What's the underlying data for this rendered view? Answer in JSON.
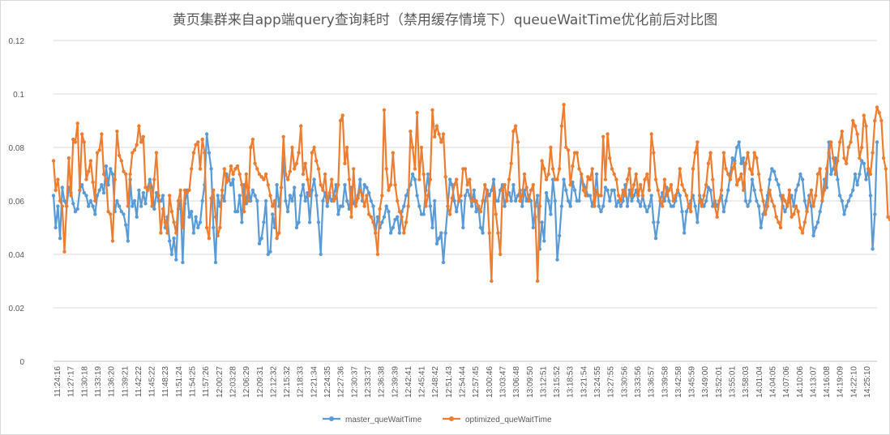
{
  "chart_data": {
    "type": "line",
    "title": "黄页集群来自app端query查询耗时（禁用缓存情境下）queueWaitTime优化前后对比图",
    "ylim": [
      0,
      0.12
    ],
    "yticks": [
      "0",
      "0.02",
      "0.04",
      "0.06",
      "0.08",
      "0.1",
      "0.12"
    ],
    "grid": true,
    "legend": "bottom",
    "x_tick_labels": [
      "11:24:16",
      "11:27:17",
      "11:30:18",
      "11:33:19",
      "11:36:20",
      "11:39:21",
      "11:42:22",
      "11:45:22",
      "11:48:23",
      "11:51:24",
      "11:54:25",
      "11:57:26",
      "12:00:27",
      "12:03:28",
      "12:06:29",
      "12:09:31",
      "12:12:32",
      "12:15:32",
      "12:18:33",
      "12:21:34",
      "12:24:35",
      "12:27:36",
      "12:30:37",
      "12:33:37",
      "12:36:38",
      "12:39:39",
      "12:42:41",
      "12:45:41",
      "12:48:42",
      "12:51:43",
      "12:54:44",
      "12:57:45",
      "13:00:46",
      "13:03:47",
      "13:06:48",
      "13:09:50",
      "13:12:51",
      "13:15:52",
      "13:18:53",
      "13:21:54",
      "13:24:55",
      "13:27:55",
      "13:30:56",
      "13:33:56",
      "13:36:57",
      "13:39:58",
      "13:42:58",
      "13:45:59",
      "13:49:00",
      "13:52:01",
      "13:55:01",
      "13:58:03",
      "14:01:04",
      "14:04:05",
      "14:07:06",
      "14:10:06",
      "14:13:07",
      "14:16:08",
      "14:19:09",
      "14:22:10",
      "14:25:10"
    ],
    "series": [
      {
        "name": "master_queWaitTime",
        "color": "#5b9bd5",
        "values": [
          0.062,
          0.05,
          0.058,
          0.046,
          0.065,
          0.06,
          0.058,
          0.065,
          0.063,
          0.059,
          0.056,
          0.057,
          0.064,
          0.066,
          0.063,
          0.062,
          0.058,
          0.06,
          0.058,
          0.055,
          0.062,
          0.064,
          0.066,
          0.063,
          0.073,
          0.066,
          0.072,
          0.07,
          0.056,
          0.06,
          0.058,
          0.056,
          0.055,
          0.051,
          0.045,
          0.068,
          0.058,
          0.06,
          0.054,
          0.064,
          0.058,
          0.063,
          0.059,
          0.065,
          0.068,
          0.065,
          0.057,
          0.063,
          0.06,
          0.06,
          0.062,
          0.05,
          0.054,
          0.045,
          0.04,
          0.046,
          0.038,
          0.057,
          0.06,
          0.037,
          0.059,
          0.064,
          0.054,
          0.056,
          0.048,
          0.054,
          0.05,
          0.052,
          0.06,
          0.066,
          0.085,
          0.078,
          0.072,
          0.05,
          0.037,
          0.062,
          0.058,
          0.062,
          0.06,
          0.07,
          0.068,
          0.066,
          0.068,
          0.056,
          0.056,
          0.062,
          0.052,
          0.066,
          0.059,
          0.065,
          0.06,
          0.064,
          0.062,
          0.06,
          0.044,
          0.046,
          0.052,
          0.06,
          0.04,
          0.041,
          0.055,
          0.05,
          0.066,
          0.058,
          0.065,
          0.076,
          0.06,
          0.056,
          0.062,
          0.06,
          0.065,
          0.05,
          0.052,
          0.062,
          0.066,
          0.06,
          0.063,
          0.052,
          0.064,
          0.068,
          0.062,
          0.052,
          0.04,
          0.06,
          0.063,
          0.058,
          0.062,
          0.06,
          0.062,
          0.066,
          0.055,
          0.058,
          0.058,
          0.066,
          0.06,
          0.057,
          0.065,
          0.059,
          0.06,
          0.062,
          0.068,
          0.06,
          0.066,
          0.065,
          0.063,
          0.06,
          0.058,
          0.048,
          0.054,
          0.05,
          0.052,
          0.054,
          0.058,
          0.056,
          0.048,
          0.05,
          0.053,
          0.054,
          0.048,
          0.056,
          0.058,
          0.062,
          0.064,
          0.066,
          0.07,
          0.068,
          0.062,
          0.058,
          0.055,
          0.055,
          0.064,
          0.07,
          0.058,
          0.05,
          0.06,
          0.044,
          0.046,
          0.048,
          0.037,
          0.048,
          0.058,
          0.068,
          0.066,
          0.06,
          0.056,
          0.06,
          0.06,
          0.05,
          0.062,
          0.064,
          0.062,
          0.058,
          0.064,
          0.056,
          0.058,
          0.05,
          0.048,
          0.06,
          0.064,
          0.062,
          0.064,
          0.068,
          0.06,
          0.06,
          0.064,
          0.066,
          0.058,
          0.062,
          0.063,
          0.06,
          0.066,
          0.06,
          0.062,
          0.064,
          0.058,
          0.064,
          0.06,
          0.062,
          0.06,
          0.05,
          0.058,
          0.062,
          0.042,
          0.052,
          0.045,
          0.063,
          0.06,
          0.055,
          0.068,
          0.06,
          0.038,
          0.047,
          0.058,
          0.068,
          0.064,
          0.06,
          0.058,
          0.067,
          0.064,
          0.06,
          0.06,
          0.07,
          0.066,
          0.065,
          0.062,
          0.062,
          0.058,
          0.062,
          0.07,
          0.058,
          0.056,
          0.058,
          0.065,
          0.064,
          0.06,
          0.064,
          0.064,
          0.058,
          0.06,
          0.058,
          0.06,
          0.066,
          0.058,
          0.064,
          0.06,
          0.062,
          0.064,
          0.06,
          0.058,
          0.062,
          0.058,
          0.056,
          0.058,
          0.062,
          0.052,
          0.046,
          0.052,
          0.06,
          0.063,
          0.06,
          0.065,
          0.06,
          0.058,
          0.058,
          0.06,
          0.064,
          0.062,
          0.056,
          0.048,
          0.056,
          0.058,
          0.06,
          0.062,
          0.058,
          0.052,
          0.062,
          0.06,
          0.058,
          0.06,
          0.065,
          0.064,
          0.058,
          0.06,
          0.058,
          0.06,
          0.062,
          0.056,
          0.06,
          0.064,
          0.07,
          0.076,
          0.075,
          0.08,
          0.082,
          0.074,
          0.076,
          0.06,
          0.058,
          0.06,
          0.068,
          0.064,
          0.06,
          0.058,
          0.05,
          0.055,
          0.058,
          0.062,
          0.068,
          0.072,
          0.071,
          0.068,
          0.066,
          0.062,
          0.058,
          0.056,
          0.058,
          0.06,
          0.062,
          0.058,
          0.064,
          0.066,
          0.07,
          0.068,
          0.06,
          0.056,
          0.062,
          0.058,
          0.047,
          0.05,
          0.052,
          0.056,
          0.06,
          0.068,
          0.065,
          0.082,
          0.07,
          0.072,
          0.076,
          0.068,
          0.062,
          0.06,
          0.055,
          0.058,
          0.06,
          0.062,
          0.064,
          0.07,
          0.066,
          0.07,
          0.075,
          0.074,
          0.068,
          0.072,
          0.062,
          0.042,
          0.055,
          0.082
        ]
      },
      {
        "name": "optimized_queWaitTime",
        "color": "#ed7d31",
        "values": [
          0.075,
          0.064,
          0.068,
          0.06,
          0.058,
          0.041,
          0.058,
          0.076,
          0.062,
          0.083,
          0.082,
          0.089,
          0.064,
          0.085,
          0.082,
          0.068,
          0.071,
          0.075,
          0.067,
          0.06,
          0.078,
          0.079,
          0.085,
          0.07,
          0.068,
          0.056,
          0.055,
          0.045,
          0.068,
          0.086,
          0.077,
          0.075,
          0.071,
          0.07,
          0.058,
          0.07,
          0.078,
          0.079,
          0.081,
          0.088,
          0.082,
          0.084,
          0.065,
          0.064,
          0.066,
          0.058,
          0.068,
          0.078,
          0.062,
          0.048,
          0.057,
          0.052,
          0.048,
          0.062,
          0.056,
          0.052,
          0.048,
          0.06,
          0.064,
          0.05,
          0.064,
          0.063,
          0.064,
          0.072,
          0.078,
          0.081,
          0.082,
          0.072,
          0.083,
          0.078,
          0.05,
          0.046,
          0.061,
          0.064,
          0.054,
          0.047,
          0.05,
          0.064,
          0.072,
          0.067,
          0.068,
          0.073,
          0.07,
          0.072,
          0.073,
          0.07,
          0.066,
          0.056,
          0.07,
          0.06,
          0.08,
          0.083,
          0.074,
          0.072,
          0.07,
          0.069,
          0.068,
          0.07,
          0.066,
          0.062,
          0.058,
          0.06,
          0.046,
          0.048,
          0.065,
          0.084,
          0.07,
          0.068,
          0.071,
          0.08,
          0.072,
          0.074,
          0.078,
          0.088,
          0.07,
          0.074,
          0.068,
          0.062,
          0.078,
          0.08,
          0.075,
          0.072,
          0.066,
          0.064,
          0.07,
          0.06,
          0.063,
          0.068,
          0.06,
          0.061,
          0.066,
          0.09,
          0.092,
          0.074,
          0.08,
          0.068,
          0.054,
          0.072,
          0.058,
          0.061,
          0.064,
          0.062,
          0.058,
          0.062,
          0.055,
          0.054,
          0.052,
          0.048,
          0.04,
          0.057,
          0.062,
          0.094,
          0.072,
          0.064,
          0.066,
          0.078,
          0.066,
          0.06,
          0.056,
          0.054,
          0.048,
          0.052,
          0.058,
          0.086,
          0.08,
          0.072,
          0.093,
          0.068,
          0.08,
          0.07,
          0.058,
          0.062,
          0.068,
          0.094,
          0.084,
          0.088,
          0.085,
          0.082,
          0.085,
          0.069,
          0.058,
          0.055,
          0.061,
          0.066,
          0.068,
          0.06,
          0.062,
          0.072,
          0.072,
          0.066,
          0.068,
          0.06,
          0.06,
          0.06,
          0.058,
          0.056,
          0.06,
          0.066,
          0.063,
          0.048,
          0.03,
          0.065,
          0.055,
          0.048,
          0.04,
          0.064,
          0.066,
          0.06,
          0.068,
          0.074,
          0.086,
          0.088,
          0.082,
          0.06,
          0.062,
          0.07,
          0.065,
          0.06,
          0.064,
          0.066,
          0.054,
          0.03,
          0.058,
          0.075,
          0.072,
          0.068,
          0.07,
          0.08,
          0.072,
          0.068,
          0.068,
          0.072,
          0.088,
          0.096,
          0.08,
          0.079,
          0.066,
          0.073,
          0.078,
          0.078,
          0.072,
          0.07,
          0.064,
          0.062,
          0.069,
          0.068,
          0.072,
          0.058,
          0.064,
          0.062,
          0.062,
          0.084,
          0.068,
          0.085,
          0.076,
          0.072,
          0.07,
          0.068,
          0.062,
          0.06,
          0.064,
          0.062,
          0.068,
          0.072,
          0.062,
          0.066,
          0.07,
          0.062,
          0.066,
          0.062,
          0.068,
          0.07,
          0.064,
          0.085,
          0.078,
          0.068,
          0.064,
          0.06,
          0.058,
          0.068,
          0.062,
          0.064,
          0.066,
          0.06,
          0.062,
          0.064,
          0.072,
          0.066,
          0.064,
          0.062,
          0.058,
          0.056,
          0.072,
          0.078,
          0.082,
          0.06,
          0.058,
          0.062,
          0.066,
          0.074,
          0.078,
          0.068,
          0.058,
          0.054,
          0.06,
          0.064,
          0.078,
          0.072,
          0.07,
          0.068,
          0.072,
          0.074,
          0.066,
          0.068,
          0.07,
          0.064,
          0.074,
          0.078,
          0.072,
          0.07,
          0.078,
          0.076,
          0.07,
          0.064,
          0.06,
          0.055,
          0.058,
          0.064,
          0.06,
          0.058,
          0.054,
          0.052,
          0.05,
          0.062,
          0.06,
          0.058,
          0.064,
          0.054,
          0.055,
          0.058,
          0.056,
          0.05,
          0.048,
          0.052,
          0.056,
          0.06,
          0.064,
          0.058,
          0.062,
          0.07,
          0.072,
          0.06,
          0.064,
          0.072,
          0.078,
          0.082,
          0.076,
          0.07,
          0.075,
          0.082,
          0.086,
          0.076,
          0.074,
          0.08,
          0.082,
          0.09,
          0.088,
          0.085,
          0.076,
          0.08,
          0.092,
          0.088,
          0.072,
          0.07,
          0.078,
          0.09,
          0.095,
          0.093,
          0.09,
          0.076,
          0.072,
          0.054,
          0.053
        ]
      }
    ]
  }
}
